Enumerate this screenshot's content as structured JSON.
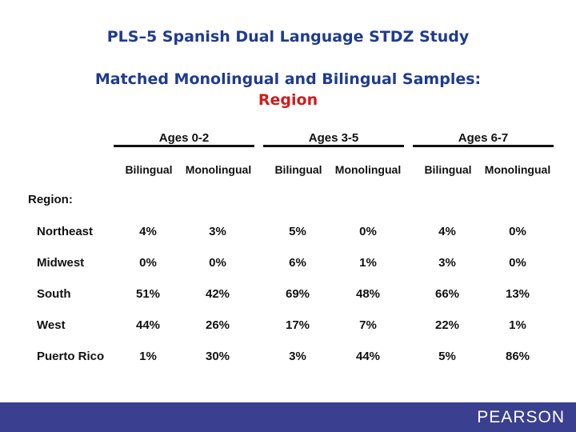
{
  "title_line1": "PLS–5 Spanish Dual Language STDZ Study",
  "title_line2": "Matched Monolingual and Bilingual Samples:",
  "title_line3": "Region",
  "table": {
    "age_groups": [
      "Ages 0-2",
      "Ages 3-5",
      "Ages 6-7"
    ],
    "column_headers": [
      "Bilingual",
      "Monolingual",
      "Bilingual",
      "Monolingual",
      "Bilingual",
      "Monolingual"
    ],
    "section_label": "Region:",
    "rows": [
      {
        "label": "Northeast",
        "values": [
          "4%",
          "3%",
          "5%",
          "0%",
          "4%",
          "0%"
        ]
      },
      {
        "label": "Midwest",
        "values": [
          "0%",
          "0%",
          "6%",
          "1%",
          "3%",
          "0%"
        ]
      },
      {
        "label": "South",
        "values": [
          "51%",
          "42%",
          "69%",
          "48%",
          "66%",
          "13%"
        ]
      },
      {
        "label": "West",
        "values": [
          "44%",
          "26%",
          "17%",
          "7%",
          "22%",
          "1%"
        ]
      },
      {
        "label": "Puerto Rico",
        "values": [
          "1%",
          "30%",
          "3%",
          "44%",
          "5%",
          "86%"
        ]
      }
    ]
  },
  "footer": {
    "logo_text": "PEARSON",
    "bar_color": "#3a3f8f"
  }
}
